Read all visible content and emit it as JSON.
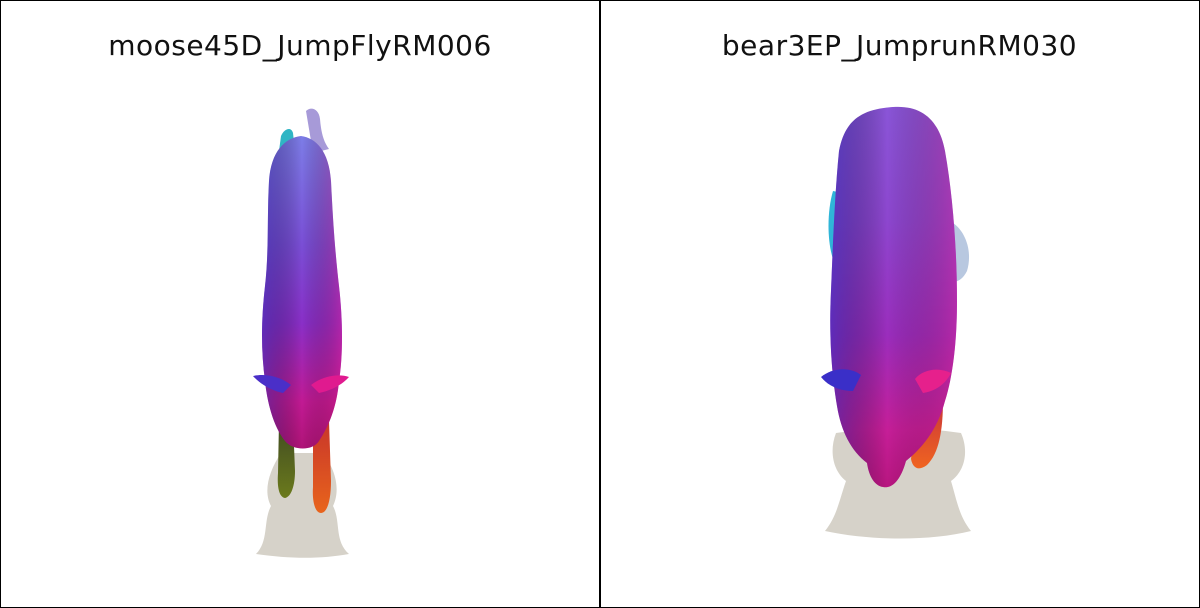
{
  "panels": [
    {
      "title": "moose45D_JumpFlyRM006",
      "subject": "moose-mesh"
    },
    {
      "title": "bear3EP_JumprunRM030",
      "subject": "bear-mesh"
    }
  ],
  "colors": {
    "shadow": "#d6d2c9",
    "body_blue": "#6a5fe0",
    "body_purple": "#8a3bd0",
    "body_magenta": "#d0198f",
    "leg_orange": "#e0551f",
    "leg_olive": "#5b6b1e",
    "antler_cyan": "#2fb5c4"
  }
}
